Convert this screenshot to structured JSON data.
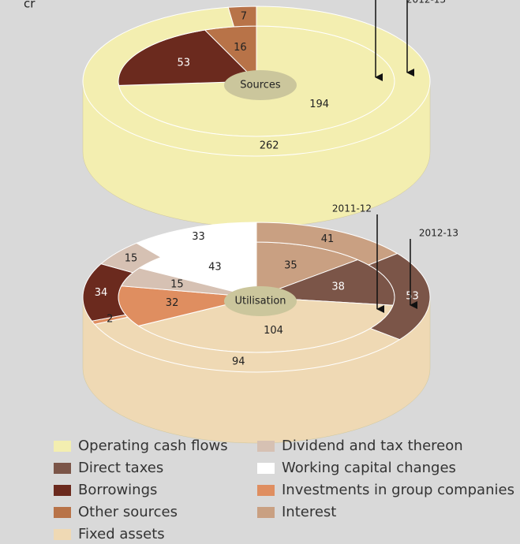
{
  "unit": "cr",
  "legend": [
    {
      "name": "Operating cash flows",
      "color": "#f3eeb0"
    },
    {
      "name": "Direct taxes",
      "color": "#7b5548"
    },
    {
      "name": "Borrowings",
      "color": "#6b2a1e"
    },
    {
      "name": "Other sources",
      "color": "#b87348"
    },
    {
      "name": "Fixed assets",
      "color": "#efd9b4"
    },
    {
      "name": "Dividend and tax thereon",
      "color": "#d6c1b3"
    },
    {
      "name": "Working capital changes",
      "color": "#ffffff"
    },
    {
      "name": "Investments in group companies",
      "color": "#df8e60"
    },
    {
      "name": "Interest",
      "color": "#c9a082"
    }
  ],
  "chart_data": [
    {
      "type": "pie",
      "center_label": "Sources",
      "series": [
        {
          "categories": [
            "Operating cash flows",
            "Borrowings",
            "Other sources"
          ],
          "values": [
            194,
            53,
            16
          ]
        },
        {
          "name": "2012-13",
          "categories": [
            "Operating cash flows",
            "Other sources"
          ],
          "values": [
            262,
            7
          ]
        }
      ]
    },
    {
      "type": "pie",
      "center_label": "Utilisation",
      "series": [
        {
          "name": "2011-12",
          "categories": [
            "Interest",
            "Direct taxes",
            "Fixed assets",
            "Investments in group companies",
            "Dividend and tax thereon",
            "Working capital changes"
          ],
          "values": [
            35,
            38,
            104,
            32,
            15,
            43
          ]
        },
        {
          "name": "2012-13",
          "categories": [
            "Interest",
            "Direct taxes",
            "Fixed assets",
            "Investments in group companies",
            "Borrowings",
            "Dividend and tax thereon",
            "Working capital changes"
          ],
          "values": [
            41,
            53,
            94,
            2,
            34,
            15,
            33
          ]
        }
      ]
    }
  ]
}
